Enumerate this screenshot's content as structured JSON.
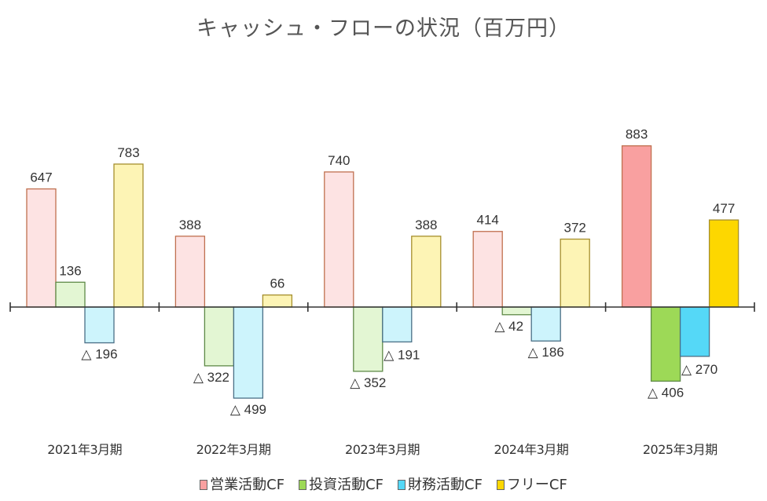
{
  "chart_data": {
    "type": "bar",
    "title": "キャッシュ・フローの状況（百万円）",
    "categories": [
      "2021年3月期",
      "2022年3月期",
      "2023年3月期",
      "2024年3月期",
      "2025年3月期"
    ],
    "series": [
      {
        "name": "営業活動CF",
        "values": [
          647,
          388,
          740,
          414,
          883
        ],
        "labels": [
          "647",
          "388",
          "740",
          "414",
          "883"
        ],
        "color_light": "#fde3e3",
        "color_strong": "#f9a0a0",
        "stroke": "#c0704f"
      },
      {
        "name": "投資活動CF",
        "values": [
          136,
          -322,
          -352,
          -42,
          -406
        ],
        "labels": [
          "136",
          "△ 322",
          "△ 352",
          "△ 42",
          "△ 406"
        ],
        "color_light": "#e3f6d3",
        "color_strong": "#9dd957",
        "stroke": "#5f8a48"
      },
      {
        "name": "財務活動CF",
        "values": [
          -196,
          -499,
          -191,
          -186,
          -270
        ],
        "labels": [
          "△ 196",
          "△ 499",
          "△ 191",
          "△ 186",
          "△ 270"
        ],
        "color_light": "#cdf4fc",
        "color_strong": "#55d8f7",
        "stroke": "#4a6f86"
      },
      {
        "name": "フリーCF",
        "values": [
          783,
          66,
          388,
          372,
          477
        ],
        "labels": [
          "783",
          "66",
          "388",
          "372",
          "477"
        ],
        "color_light": "#fdf4b5",
        "color_strong": "#fdd700",
        "stroke": "#a68f2e"
      }
    ],
    "highlight_category_index": 4,
    "xlabel": "",
    "ylabel": "",
    "ylim": [
      -600,
      1000
    ],
    "grid": false,
    "legend": "bottom"
  }
}
